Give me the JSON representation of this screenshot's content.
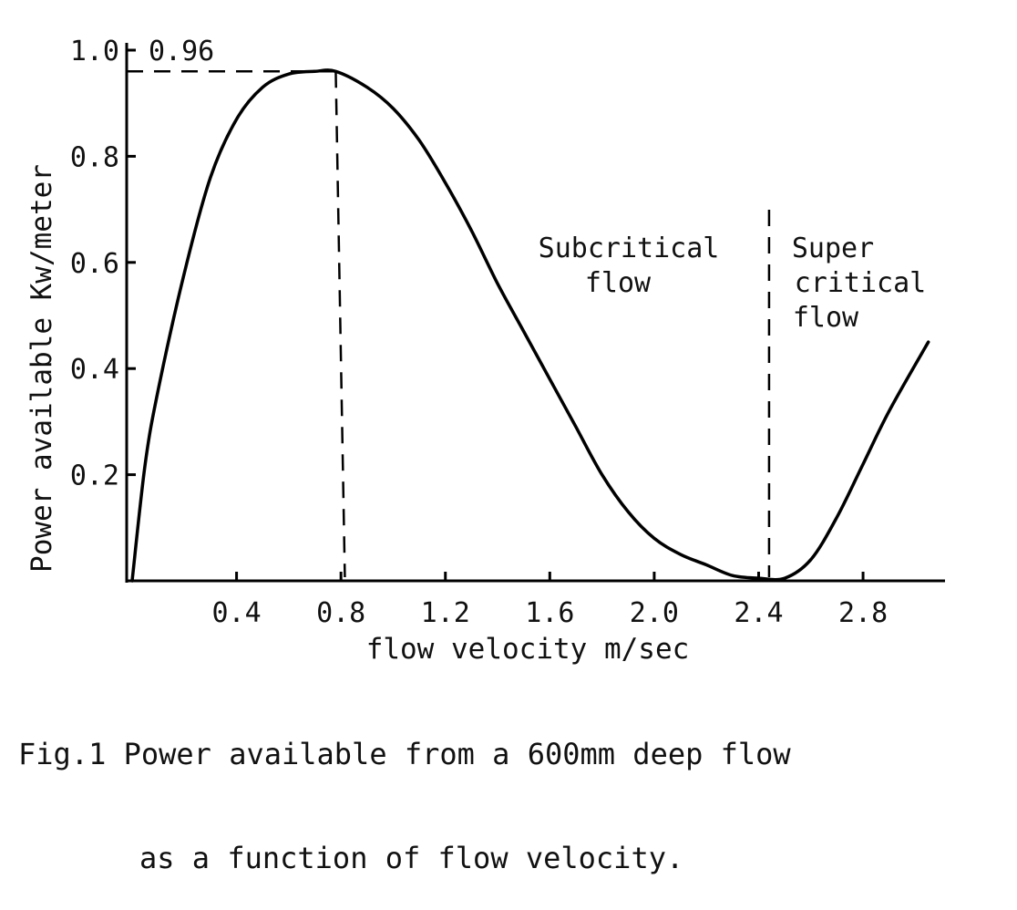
{
  "chart_data": {
    "type": "line",
    "xlabel": "flow velocity m/sec",
    "ylabel": "Power available Kw/meter",
    "xlim": [
      0,
      3.1
    ],
    "ylim": [
      0,
      1.0
    ],
    "x_ticks": [
      0.4,
      0.8,
      1.2,
      1.6,
      2.0,
      2.4,
      2.8
    ],
    "x_tick_labels": [
      "0.4",
      "0.8",
      "1.2",
      "1.6",
      "2.0",
      "2.4",
      "2.8"
    ],
    "y_ticks": [
      0.2,
      0.4,
      0.6,
      0.8,
      1.0
    ],
    "y_tick_labels": [
      "0.2",
      "0.4",
      "0.6",
      "0.8",
      "1.0"
    ],
    "grid": false,
    "series": [
      {
        "x": [
          0.0,
          0.05,
          0.1,
          0.2,
          0.3,
          0.4,
          0.5,
          0.6,
          0.7,
          0.78,
          0.9,
          1.0,
          1.1,
          1.2,
          1.3,
          1.4,
          1.5,
          1.6,
          1.7,
          1.8,
          1.9,
          2.0,
          2.1,
          2.2,
          2.3,
          2.4,
          2.5,
          2.6,
          2.7,
          2.8,
          2.9,
          3.05
        ],
        "y": [
          0.0,
          0.22,
          0.36,
          0.58,
          0.76,
          0.87,
          0.93,
          0.955,
          0.96,
          0.96,
          0.93,
          0.89,
          0.83,
          0.75,
          0.66,
          0.56,
          0.47,
          0.38,
          0.29,
          0.2,
          0.13,
          0.08,
          0.05,
          0.03,
          0.01,
          0.005,
          0.005,
          0.04,
          0.12,
          0.22,
          0.32,
          0.45
        ]
      }
    ],
    "annotations": {
      "peak_label": "0.96",
      "peak_value": 0.96,
      "peak_x": 0.78,
      "divider_x": 2.44,
      "region_subcritical": [
        "Subcritical",
        "flow"
      ],
      "region_supercritical": [
        "Super",
        "critical",
        "flow"
      ]
    }
  },
  "caption": {
    "line1": "Fig.1 Power available from a 600mm deep flow",
    "line2": "as a function of flow velocity."
  }
}
